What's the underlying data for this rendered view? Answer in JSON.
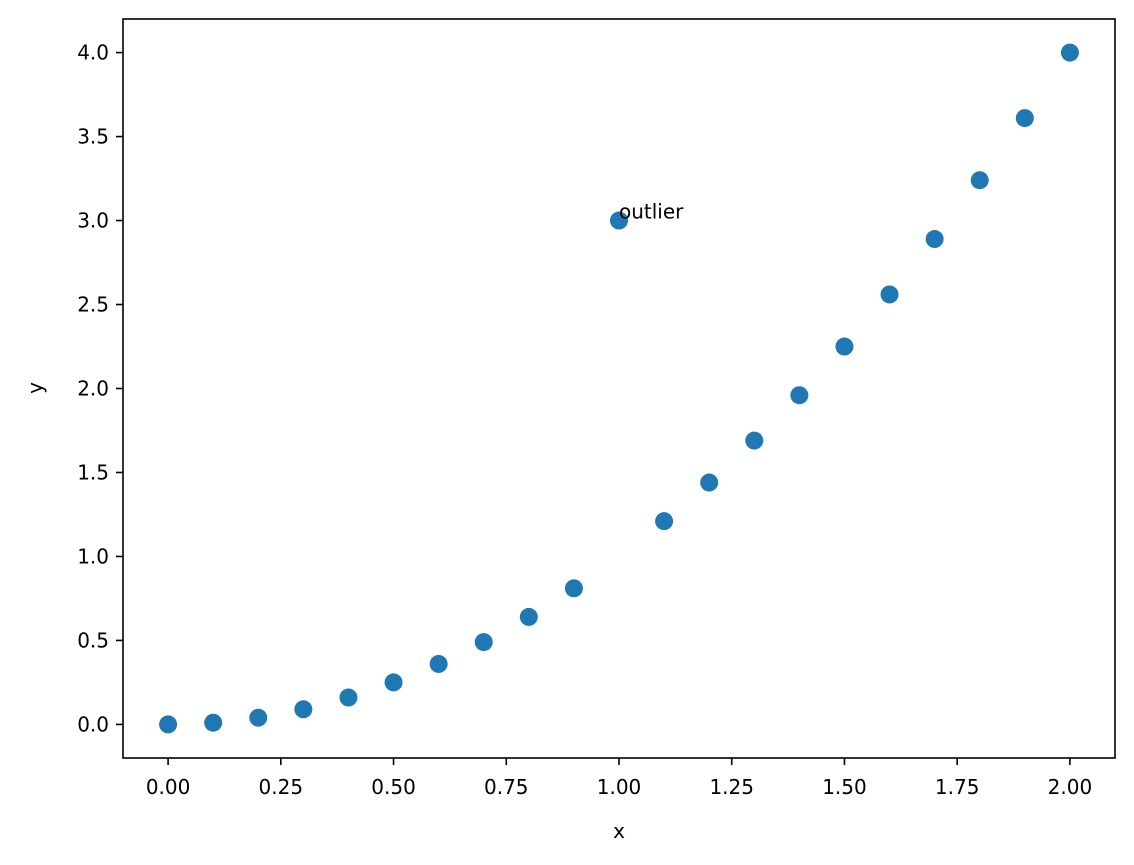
{
  "chart_data": {
    "type": "scatter",
    "title": "",
    "xlabel": "x",
    "ylabel": "y",
    "xlim": [
      -0.1,
      2.1
    ],
    "ylim": [
      -0.2,
      4.2
    ],
    "xticks": [
      0.0,
      0.25,
      0.5,
      0.75,
      1.0,
      1.25,
      1.5,
      1.75,
      2.0
    ],
    "xtick_labels": [
      "0.00",
      "0.25",
      "0.50",
      "0.75",
      "1.00",
      "1.25",
      "1.50",
      "1.75",
      "2.00"
    ],
    "yticks": [
      0.0,
      0.5,
      1.0,
      1.5,
      2.0,
      2.5,
      3.0,
      3.5,
      4.0
    ],
    "ytick_labels": [
      "0.0",
      "0.5",
      "1.0",
      "1.5",
      "2.0",
      "2.5",
      "3.0",
      "3.5",
      "4.0"
    ],
    "grid": false,
    "legend": false,
    "series": [
      {
        "color": "#1f77b4",
        "x": [
          0.0,
          0.1,
          0.2,
          0.3,
          0.4,
          0.5,
          0.6,
          0.7,
          0.8,
          0.9,
          1.0,
          1.1,
          1.2,
          1.3,
          1.4,
          1.5,
          1.6,
          1.7,
          1.8,
          1.9,
          2.0
        ],
        "y": [
          0.0,
          0.01,
          0.04,
          0.09,
          0.16,
          0.25,
          0.36,
          0.49,
          0.64,
          0.81,
          3.0,
          1.21,
          1.44,
          1.69,
          1.96,
          2.25,
          2.56,
          2.89,
          3.24,
          3.61,
          4.0
        ]
      }
    ],
    "annotations": [
      {
        "text": "outlier",
        "x": 1.0,
        "y": 3.0
      }
    ]
  }
}
